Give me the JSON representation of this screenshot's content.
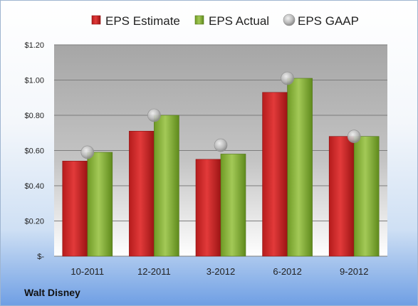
{
  "company": "Walt Disney",
  "chart_data": {
    "type": "bar",
    "categories": [
      "10-2011",
      "12-2011",
      "3-2012",
      "6-2012",
      "9-2012"
    ],
    "series": [
      {
        "name": "EPS Estimate",
        "kind": "bar",
        "color": "#cc2b2b",
        "values": [
          0.54,
          0.71,
          0.55,
          0.93,
          0.68
        ]
      },
      {
        "name": "EPS Actual",
        "kind": "bar",
        "color": "#8cb33a",
        "values": [
          0.59,
          0.8,
          0.58,
          1.01,
          0.68
        ]
      },
      {
        "name": "EPS GAAP",
        "kind": "marker",
        "color": "#b8b8b8",
        "values": [
          0.59,
          0.8,
          0.63,
          1.01,
          0.68
        ]
      }
    ],
    "ylim": [
      0,
      1.2
    ],
    "yticks": [
      {
        "value": 0,
        "label": "$-"
      },
      {
        "value": 0.2,
        "label": "$0.20"
      },
      {
        "value": 0.4,
        "label": "$0.40"
      },
      {
        "value": 0.6,
        "label": "$0.60"
      },
      {
        "value": 0.8,
        "label": "$0.80"
      },
      {
        "value": 1.0,
        "label": "$1.00"
      },
      {
        "value": 1.2,
        "label": "$1.20"
      }
    ],
    "grid": true,
    "legend": "top",
    "title": "",
    "xlabel": "",
    "ylabel": ""
  }
}
